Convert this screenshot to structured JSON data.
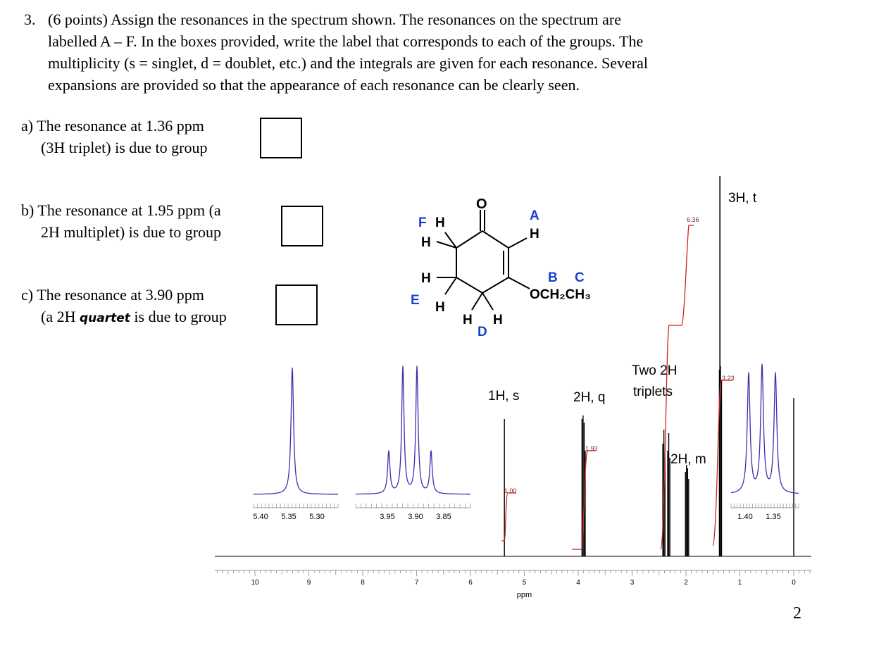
{
  "question": {
    "number": "3.",
    "lines": [
      "(6 points) Assign the resonances in the spectrum shown.  The resonances on the spectrum are",
      "labelled A – F.   In the boxes provided, write the label that corresponds to each of the groups. The",
      "multiplicity (s = singlet, d = doublet, etc.) and the integrals are given for each resonance.  Several",
      "expansions are provided so that the appearance of each resonance can be clearly seen."
    ]
  },
  "parts": [
    {
      "line1": "a)  The resonance at 1.36 ppm",
      "line2": "(3H triplet) is due to group"
    },
    {
      "line1": "b)  The resonance at 1.95 ppm (a",
      "line2": "2H multiplet) is due to group"
    },
    {
      "line1": "c)  The resonance at 3.90 ppm",
      "line2_pre": "(a 2H ",
      "line2_hand": "quartet",
      "line2_post": " is due to group"
    }
  ],
  "molecule": {
    "labels": {
      "A": "A",
      "B": "B",
      "C": "C",
      "D": "D",
      "E": "E",
      "F": "F"
    },
    "atoms": {
      "O": "O",
      "H": "H",
      "ethoxy": "OCH₂CH₃"
    }
  },
  "spectrum": {
    "x_axis_label": "ppm",
    "x_ticks": [
      "10",
      "9",
      "8",
      "7",
      "6",
      "5",
      "4",
      "3",
      "2",
      "1",
      "0"
    ],
    "annotations": {
      "s1": "1H, s",
      "q2": "2H, q",
      "two_triplets_1": "Two 2H",
      "two_triplets_2": "triplets",
      "m2": "2H, m",
      "t3": "3H, t"
    },
    "integrals": {
      "i1": "1.00",
      "i2": "1.93",
      "i3": "6.36",
      "i4": "3.23"
    },
    "expansion_ticks": {
      "e1": [
        "5.40",
        "5.35",
        "5.30"
      ],
      "e2": [
        "3.95",
        "3.90",
        "3.85"
      ],
      "e3": [
        "1.40",
        "1.35"
      ]
    },
    "colors": {
      "spectrum": "#000000",
      "integral": "#cc2222",
      "expansion": "#3a2fb0",
      "labels": "#1a3fd0"
    }
  },
  "page_number": "2"
}
